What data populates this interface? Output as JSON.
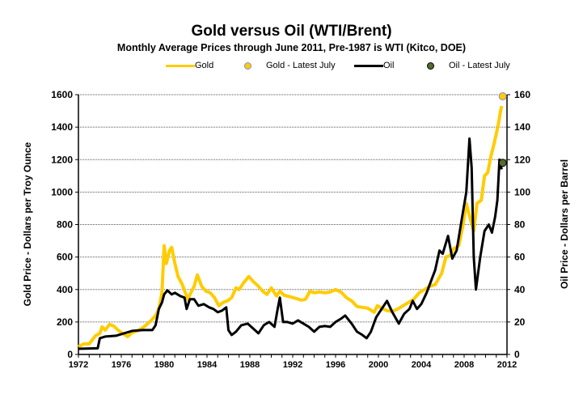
{
  "chart_data": {
    "type": "line",
    "title": "Gold versus Oil (WTI/Brent)",
    "subtitle": "Monthly Average Prices through June 2011, Pre-1987 is WTI (Kitco, DOE)",
    "xlabel": "",
    "ylabel_left": "Gold Price - Dollars per Troy Ounce",
    "ylabel_right": "Oil Price - Dollars per Barrel",
    "xlim": [
      1972,
      2012
    ],
    "ylim_left": [
      0,
      1600
    ],
    "ylim_right": [
      0,
      160
    ],
    "x_ticks": [
      "1972",
      "1976",
      "1980",
      "1984",
      "1988",
      "1992",
      "1996",
      "2000",
      "2004",
      "2008",
      "2012"
    ],
    "y_ticks_left": [
      "0",
      "200",
      "400",
      "600",
      "800",
      "1000",
      "1200",
      "1400",
      "1600"
    ],
    "y_ticks_right": [
      "0",
      "20",
      "40",
      "60",
      "80",
      "100",
      "120",
      "140",
      "160"
    ],
    "grid": true,
    "legend_position": "top",
    "legend": [
      {
        "label": "Gold",
        "kind": "line",
        "color": "#FFCC00"
      },
      {
        "label": "Gold - Latest July",
        "kind": "marker",
        "color": "#FFCC00",
        "edge": "#8888CC"
      },
      {
        "label": "Oil",
        "kind": "line",
        "color": "#000000"
      },
      {
        "label": "Oil - Latest July",
        "kind": "marker",
        "color": "#556B2F",
        "edge": "#000000"
      }
    ],
    "series": [
      {
        "name": "Gold",
        "axis": "left",
        "color": "#FFCC00",
        "points": [
          [
            1972.0,
            48
          ],
          [
            1972.5,
            65
          ],
          [
            1973.0,
            65
          ],
          [
            1973.3,
            90
          ],
          [
            1973.6,
            115
          ],
          [
            1974.0,
            130
          ],
          [
            1974.2,
            170
          ],
          [
            1974.5,
            150
          ],
          [
            1974.9,
            185
          ],
          [
            1975.3,
            175
          ],
          [
            1975.7,
            150
          ],
          [
            1976.0,
            135
          ],
          [
            1976.6,
            110
          ],
          [
            1977.0,
            135
          ],
          [
            1977.5,
            145
          ],
          [
            1977.9,
            160
          ],
          [
            1978.3,
            180
          ],
          [
            1978.8,
            210
          ],
          [
            1979.2,
            240
          ],
          [
            1979.5,
            280
          ],
          [
            1979.8,
            380
          ],
          [
            1980.0,
            670
          ],
          [
            1980.2,
            560
          ],
          [
            1980.5,
            640
          ],
          [
            1980.7,
            660
          ],
          [
            1981.0,
            560
          ],
          [
            1981.3,
            480
          ],
          [
            1981.7,
            430
          ],
          [
            1982.2,
            340
          ],
          [
            1982.5,
            380
          ],
          [
            1982.8,
            420
          ],
          [
            1983.1,
            490
          ],
          [
            1983.5,
            420
          ],
          [
            1983.9,
            390
          ],
          [
            1984.3,
            380
          ],
          [
            1984.7,
            350
          ],
          [
            1985.1,
            300
          ],
          [
            1985.5,
            320
          ],
          [
            1985.9,
            330
          ],
          [
            1986.3,
            350
          ],
          [
            1986.7,
            410
          ],
          [
            1987.0,
            400
          ],
          [
            1987.4,
            440
          ],
          [
            1987.9,
            480
          ],
          [
            1988.3,
            450
          ],
          [
            1988.8,
            420
          ],
          [
            1989.2,
            390
          ],
          [
            1989.6,
            370
          ],
          [
            1990.0,
            410
          ],
          [
            1990.5,
            360
          ],
          [
            1990.8,
            390
          ],
          [
            1991.2,
            365
          ],
          [
            1991.8,
            355
          ],
          [
            1992.3,
            345
          ],
          [
            1992.8,
            335
          ],
          [
            1993.2,
            340
          ],
          [
            1993.6,
            390
          ],
          [
            1994.0,
            380
          ],
          [
            1994.5,
            385
          ],
          [
            1995.0,
            380
          ],
          [
            1995.5,
            385
          ],
          [
            1996.0,
            400
          ],
          [
            1996.5,
            385
          ],
          [
            1997.0,
            350
          ],
          [
            1997.5,
            330
          ],
          [
            1998.0,
            295
          ],
          [
            1998.5,
            290
          ],
          [
            1999.0,
            285
          ],
          [
            1999.6,
            260
          ],
          [
            1999.9,
            300
          ],
          [
            2000.3,
            285
          ],
          [
            2000.8,
            270
          ],
          [
            2001.3,
            265
          ],
          [
            2001.8,
            280
          ],
          [
            2002.3,
            300
          ],
          [
            2002.8,
            320
          ],
          [
            2003.3,
            340
          ],
          [
            2003.8,
            380
          ],
          [
            2004.3,
            400
          ],
          [
            2004.8,
            420
          ],
          [
            2005.3,
            430
          ],
          [
            2005.9,
            500
          ],
          [
            2006.3,
            600
          ],
          [
            2006.7,
            610
          ],
          [
            2007.0,
            650
          ],
          [
            2007.5,
            670
          ],
          [
            2007.9,
            800
          ],
          [
            2008.2,
            930
          ],
          [
            2008.6,
            830
          ],
          [
            2008.9,
            760
          ],
          [
            2009.2,
            930
          ],
          [
            2009.6,
            950
          ],
          [
            2009.9,
            1100
          ],
          [
            2010.2,
            1120
          ],
          [
            2010.5,
            1220
          ],
          [
            2010.8,
            1300
          ],
          [
            2011.0,
            1360
          ],
          [
            2011.2,
            1420
          ],
          [
            2011.4,
            1500
          ],
          [
            2011.5,
            1530
          ]
        ]
      },
      {
        "name": "Oil",
        "axis": "right",
        "color": "#000000",
        "points": [
          [
            1972.0,
            3.5
          ],
          [
            1973.8,
            3.8
          ],
          [
            1974.0,
            10
          ],
          [
            1974.5,
            11
          ],
          [
            1975.5,
            11.5
          ],
          [
            1976.0,
            12.5
          ],
          [
            1977.0,
            14.5
          ],
          [
            1978.0,
            15
          ],
          [
            1978.9,
            15
          ],
          [
            1979.2,
            18
          ],
          [
            1979.5,
            28
          ],
          [
            1979.8,
            32
          ],
          [
            1980.0,
            37
          ],
          [
            1980.3,
            39.5
          ],
          [
            1980.7,
            37
          ],
          [
            1981.0,
            38
          ],
          [
            1981.5,
            36
          ],
          [
            1981.9,
            35
          ],
          [
            1982.1,
            28
          ],
          [
            1982.4,
            34
          ],
          [
            1982.8,
            34
          ],
          [
            1983.2,
            30
          ],
          [
            1983.7,
            31
          ],
          [
            1984.2,
            29
          ],
          [
            1984.6,
            28
          ],
          [
            1985.0,
            26
          ],
          [
            1985.4,
            27
          ],
          [
            1985.8,
            29
          ],
          [
            1986.0,
            15
          ],
          [
            1986.3,
            12
          ],
          [
            1986.7,
            14
          ],
          [
            1987.2,
            18
          ],
          [
            1987.8,
            19
          ],
          [
            1988.3,
            16
          ],
          [
            1988.8,
            13
          ],
          [
            1989.3,
            18
          ],
          [
            1989.8,
            20
          ],
          [
            1990.3,
            17
          ],
          [
            1990.6,
            28
          ],
          [
            1990.8,
            35
          ],
          [
            1991.1,
            20
          ],
          [
            1991.5,
            20
          ],
          [
            1992.0,
            19
          ],
          [
            1992.5,
            21
          ],
          [
            1993.0,
            19
          ],
          [
            1993.5,
            17
          ],
          [
            1994.0,
            14
          ],
          [
            1994.5,
            17
          ],
          [
            1995.0,
            17.5
          ],
          [
            1995.5,
            17
          ],
          [
            1996.0,
            20
          ],
          [
            1996.5,
            22
          ],
          [
            1996.9,
            24
          ],
          [
            1997.5,
            19
          ],
          [
            1998.0,
            14
          ],
          [
            1998.5,
            12
          ],
          [
            1998.9,
            10
          ],
          [
            1999.3,
            14
          ],
          [
            1999.8,
            23
          ],
          [
            2000.3,
            28
          ],
          [
            2000.8,
            33
          ],
          [
            2001.3,
            26
          ],
          [
            2001.9,
            19
          ],
          [
            2002.4,
            25
          ],
          [
            2002.9,
            28
          ],
          [
            2003.2,
            33
          ],
          [
            2003.6,
            28
          ],
          [
            2004.0,
            31
          ],
          [
            2004.5,
            38
          ],
          [
            2004.9,
            45
          ],
          [
            2005.3,
            52
          ],
          [
            2005.7,
            64
          ],
          [
            2006.0,
            62
          ],
          [
            2006.5,
            73
          ],
          [
            2006.9,
            59
          ],
          [
            2007.3,
            64
          ],
          [
            2007.8,
            84
          ],
          [
            2008.2,
            100
          ],
          [
            2008.5,
            133
          ],
          [
            2008.7,
            115
          ],
          [
            2008.9,
            60
          ],
          [
            2009.1,
            40
          ],
          [
            2009.5,
            60
          ],
          [
            2009.9,
            76
          ],
          [
            2010.3,
            80
          ],
          [
            2010.6,
            75
          ],
          [
            2010.9,
            85
          ],
          [
            2011.1,
            95
          ],
          [
            2011.3,
            120
          ],
          [
            2011.5,
            114
          ]
        ]
      }
    ],
    "markers": [
      {
        "name": "Gold - Latest July",
        "x": 2011.6,
        "y": 1590,
        "axis": "left",
        "color": "#FFCC00",
        "edge": "#8888CC"
      },
      {
        "name": "Oil - Latest July",
        "x": 2011.6,
        "y": 118,
        "axis": "right",
        "color": "#556B2F",
        "edge": "#000000"
      }
    ]
  }
}
